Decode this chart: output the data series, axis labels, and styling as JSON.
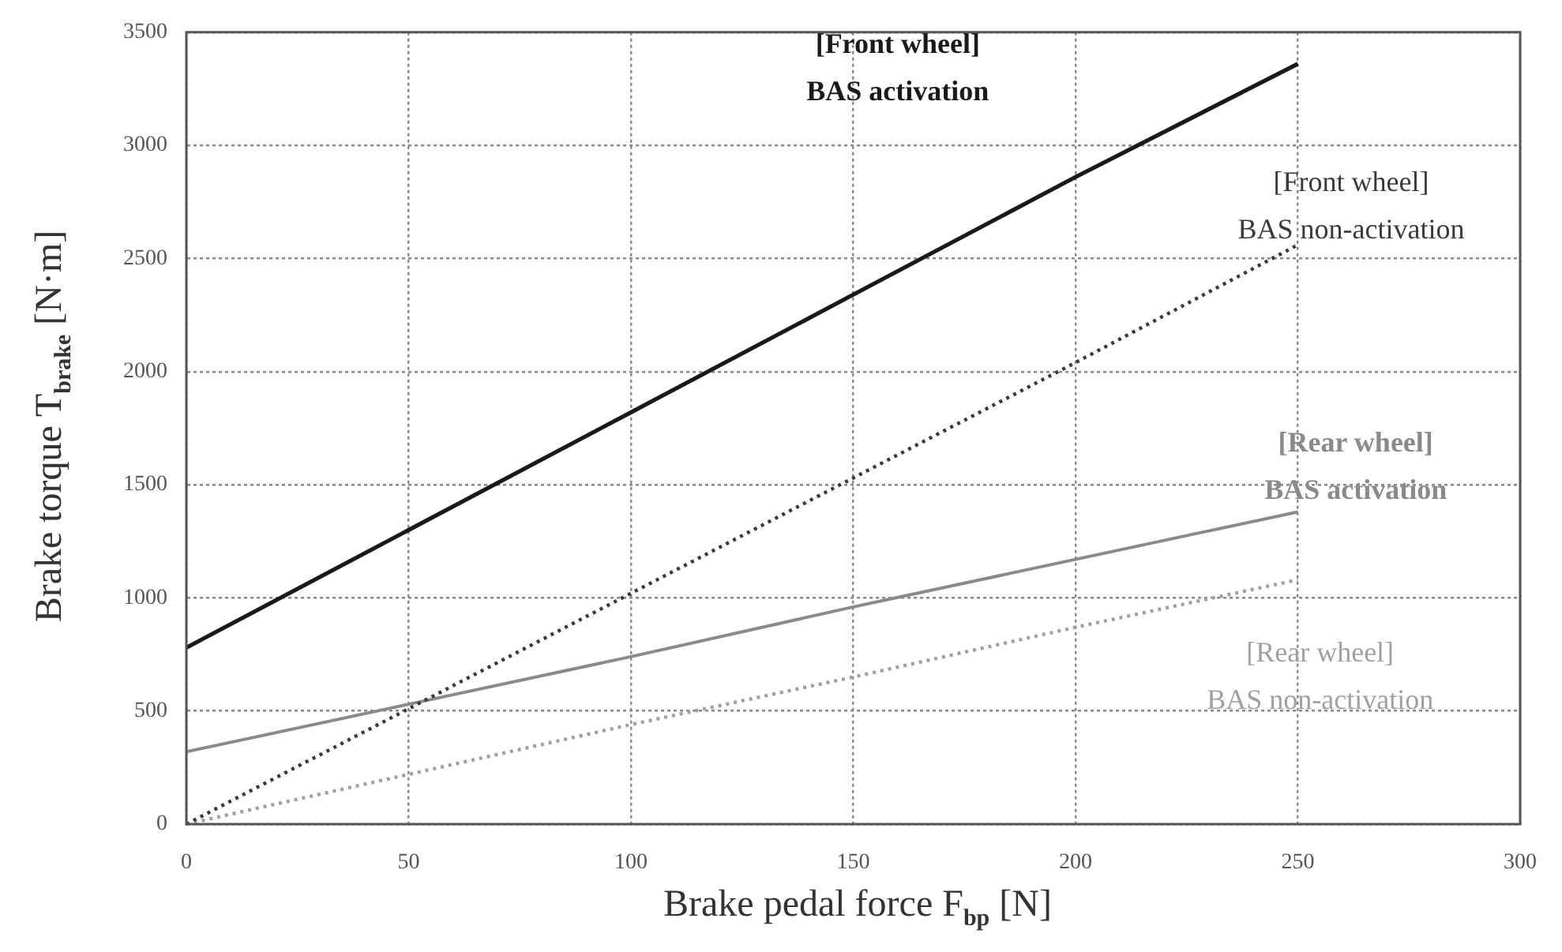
{
  "chart_data": {
    "type": "line",
    "xlabel": "Brake pedal force F$_{bp}$ [N]",
    "ylabel": "Brake torque T$_{brake}$ [N·m]",
    "x": [
      0,
      50,
      100,
      150,
      200,
      250
    ],
    "series": [
      {
        "name": "[Front wheel]\nBAS activation",
        "color": "#1a1a1a",
        "line_style": "solid",
        "values": [
          780,
          1300,
          1820,
          2340,
          2860,
          3360
        ]
      },
      {
        "name": "[Front wheel]\nBAS non-activation",
        "color": "#3a3a3a",
        "line_style": "dotted",
        "values": [
          0,
          510,
          1020,
          1530,
          2040,
          2560
        ]
      },
      {
        "name": "[Rear wheel]\nBAS activation",
        "color": "#8a8a8a",
        "line_style": "solid",
        "values": [
          320,
          530,
          740,
          960,
          1170,
          1380
        ]
      },
      {
        "name": "[Rear wheel]\nBAS non-activation",
        "color": "#a0a0a0",
        "line_style": "dotted",
        "values": [
          0,
          220,
          440,
          650,
          870,
          1080
        ]
      }
    ],
    "xlim": [
      0,
      300
    ],
    "xticks": [
      0,
      50,
      100,
      150,
      200,
      250,
      300
    ],
    "ylim": [
      0,
      3500
    ],
    "yticks": [
      0,
      500,
      1000,
      1500,
      2000,
      2500,
      3000,
      3500
    ],
    "grid": true
  }
}
